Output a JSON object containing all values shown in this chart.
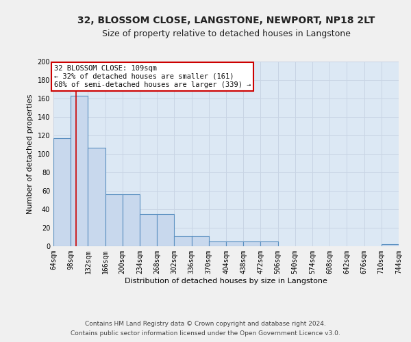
{
  "title": "32, BLOSSOM CLOSE, LANGSTONE, NEWPORT, NP18 2LT",
  "subtitle": "Size of property relative to detached houses in Langstone",
  "xlabel": "Distribution of detached houses by size in Langstone",
  "ylabel": "Number of detached properties",
  "bin_edges": [
    64,
    98,
    132,
    166,
    200,
    234,
    268,
    302,
    336,
    370,
    404,
    438,
    472,
    506,
    540,
    574,
    608,
    642,
    676,
    710,
    744
  ],
  "bar_heights": [
    117,
    163,
    107,
    56,
    56,
    35,
    35,
    11,
    11,
    5,
    5,
    5,
    5,
    0,
    0,
    0,
    0,
    0,
    0,
    2
  ],
  "bar_color": "#c8d8ed",
  "bar_edgecolor": "#5a8fc0",
  "grid_color": "#c8d4e4",
  "bg_color": "#dce8f4",
  "fig_bg_color": "#f0f0f0",
  "property_size": 109,
  "annotation_line1": "32 BLOSSOM CLOSE: 109sqm",
  "annotation_line2": "← 32% of detached houses are smaller (161)",
  "annotation_line3": "68% of semi-detached houses are larger (339) →",
  "annotation_box_color": "#ffffff",
  "annotation_border_color": "#cc0000",
  "red_line_color": "#cc0000",
  "ylim": [
    0,
    200
  ],
  "yticks": [
    0,
    20,
    40,
    60,
    80,
    100,
    120,
    140,
    160,
    180,
    200
  ],
  "footer_line1": "Contains HM Land Registry data © Crown copyright and database right 2024.",
  "footer_line2": "Contains public sector information licensed under the Open Government Licence v3.0.",
  "title_fontsize": 10,
  "subtitle_fontsize": 9,
  "axis_label_fontsize": 8,
  "tick_fontsize": 7,
  "annotation_fontsize": 7.5,
  "footer_fontsize": 6.5
}
